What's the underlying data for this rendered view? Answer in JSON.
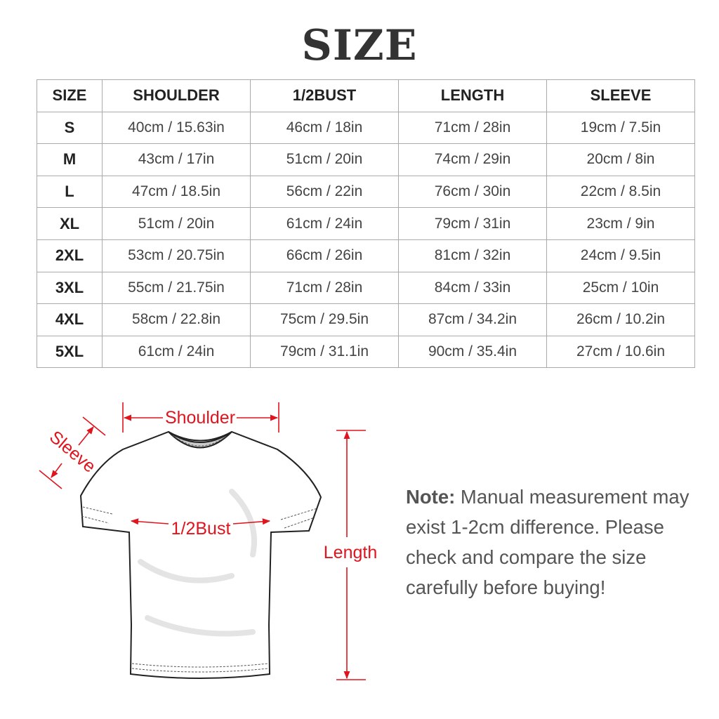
{
  "title": "SIZE",
  "table": {
    "headers": [
      "SIZE",
      "SHOULDER",
      "1/2BUST",
      "LENGTH",
      "SLEEVE"
    ],
    "rows": [
      [
        "S",
        "40cm / 15.63in",
        "46cm / 18in",
        "71cm / 28in",
        "19cm / 7.5in"
      ],
      [
        "M",
        "43cm / 17in",
        "51cm / 20in",
        "74cm / 29in",
        "20cm / 8in"
      ],
      [
        "L",
        "47cm / 18.5in",
        "56cm / 22in",
        "76cm / 30in",
        "22cm / 8.5in"
      ],
      [
        "XL",
        "51cm / 20in",
        "61cm / 24in",
        "79cm / 31in",
        "23cm / 9in"
      ],
      [
        "2XL",
        "53cm / 20.75in",
        "66cm / 26in",
        "81cm / 32in",
        "24cm / 9.5in"
      ],
      [
        "3XL",
        "55cm / 21.75in",
        "71cm / 28in",
        "84cm / 33in",
        "25cm / 10in"
      ],
      [
        "4XL",
        "58cm / 22.8in",
        "75cm / 29.5in",
        "87cm / 34.2in",
        "26cm / 10.2in"
      ],
      [
        "5XL",
        "61cm / 24in",
        "79cm / 31.1in",
        "90cm / 35.4in",
        "27cm / 10.6in"
      ]
    ]
  },
  "diagram": {
    "labels": {
      "shoulder": "Shoulder",
      "sleeve": "Sleeve",
      "bust": "1/2Bust",
      "length": "Length"
    },
    "accent_color": "#e0141e"
  },
  "note": {
    "label": "Note:",
    "text": "Manual measurement may exist 1-2cm difference. Please check and compare the size carefully before buying!"
  }
}
